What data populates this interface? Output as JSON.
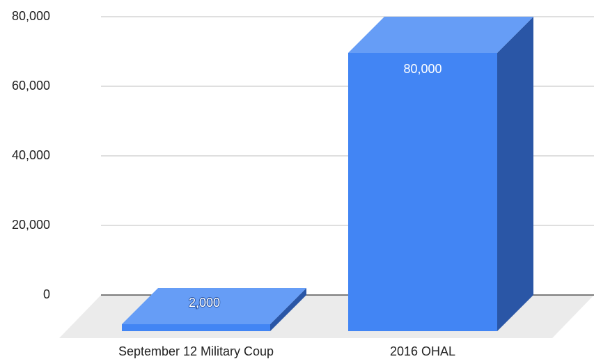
{
  "chart_data": {
    "type": "bar3d",
    "categories": [
      "September 12 Military Coup",
      "2016 OHAL"
    ],
    "values": [
      2000,
      80000
    ],
    "value_labels": [
      "2,000",
      "80,000"
    ],
    "color": "#4285f4",
    "ylim": [
      0,
      80000
    ],
    "yticks": [
      0,
      {
        "value": 20000,
        "label": "20,000"
      },
      {
        "value": 40000,
        "label": "40,000"
      },
      {
        "value": 60000,
        "label": "60,000"
      },
      {
        "value": 80000,
        "label": "80,000"
      }
    ],
    "grid": true
  }
}
